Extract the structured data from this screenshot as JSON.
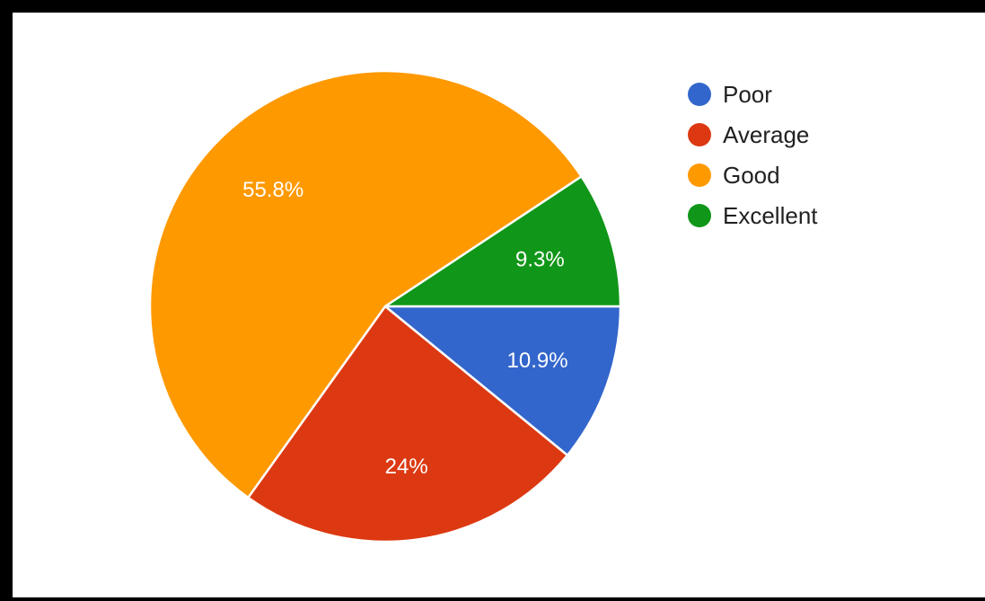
{
  "chart_data": {
    "type": "pie",
    "title": "",
    "legend_position": "top-right",
    "slices": [
      {
        "name": "Poor",
        "value": 10.9,
        "label": "10.9%",
        "color": "#3366cc"
      },
      {
        "name": "Average",
        "value": 24,
        "label": "24%",
        "color": "#dc3912"
      },
      {
        "name": "Good",
        "value": 55.8,
        "label": "55.8%",
        "color": "#ff9900"
      },
      {
        "name": "Excellent",
        "value": 9.3,
        "label": "9.3%",
        "color": "#109618"
      }
    ]
  }
}
